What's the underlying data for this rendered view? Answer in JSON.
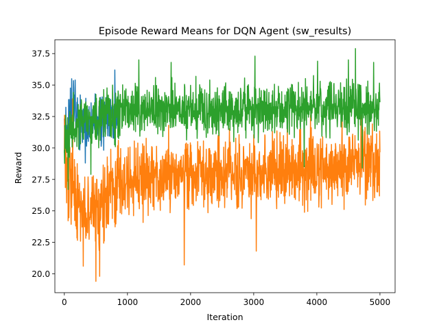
{
  "chart_data": {
    "type": "line",
    "title": "Episode Reward Means for DQN Agent (sw_results)",
    "xlabel": "Iteration",
    "ylabel": "Reward",
    "xlim": [
      -150,
      5240
    ],
    "ylim": [
      18.5,
      38.6
    ],
    "xticks": [
      0,
      1000,
      2000,
      3000,
      4000,
      5000
    ],
    "xtick_labels": [
      "0",
      "1000",
      "2000",
      "3000",
      "4000",
      "5000"
    ],
    "yticks": [
      20.0,
      22.5,
      25.0,
      27.5,
      30.0,
      32.5,
      35.0,
      37.5
    ],
    "ytick_labels": [
      "20.0",
      "22.5",
      "25.0",
      "27.5",
      "30.0",
      "32.5",
      "35.0",
      "37.5"
    ],
    "grid": false,
    "legend": "none",
    "series": [
      {
        "color": "#1f77b4",
        "x": [
          0,
          50,
          100,
          150,
          200,
          250,
          300,
          350,
          400,
          450,
          500,
          550,
          600,
          650,
          700,
          750,
          800,
          850
        ],
        "mean": [
          30.8,
          31.8,
          32.6,
          33.0,
          32.9,
          32.3,
          31.6,
          31.3,
          31.6,
          32.0,
          32.1,
          32.3,
          32.4,
          32.5,
          32.6,
          32.6,
          32.7,
          32.7
        ],
        "spread": [
          1.5,
          1.6,
          1.8,
          1.8,
          1.8,
          1.7,
          1.6,
          1.6,
          1.6,
          1.6,
          1.6,
          1.6,
          1.6,
          1.6,
          1.6,
          1.6,
          1.6,
          1.6
        ],
        "peaks": [
          [
            115,
            35.5
          ],
          [
            170,
            35.4
          ],
          [
            800,
            36.2
          ],
          [
            850,
            36.1
          ],
          [
            330,
            28.8
          ]
        ]
      },
      {
        "color": "#ff7f0e",
        "x": [
          0,
          100,
          200,
          300,
          400,
          500,
          600,
          800,
          1000,
          1500,
          2000,
          2500,
          3000,
          3500,
          4000,
          4500,
          5000
        ],
        "mean": [
          28.5,
          27.0,
          25.5,
          24.5,
          24.8,
          25.2,
          26.0,
          27.0,
          27.5,
          27.8,
          27.9,
          28.0,
          28.1,
          28.2,
          28.4,
          28.6,
          29.0
        ],
        "spread": [
          2.4,
          2.5,
          2.6,
          2.6,
          2.6,
          2.6,
          2.5,
          2.4,
          2.3,
          2.2,
          2.2,
          2.2,
          2.2,
          2.2,
          2.2,
          2.2,
          2.3
        ],
        "peaks": [
          [
            300,
            20.6
          ],
          [
            500,
            19.4
          ],
          [
            560,
            19.8
          ],
          [
            1900,
            20.7
          ],
          [
            3040,
            21.8
          ],
          [
            1650,
            31.8
          ],
          [
            3900,
            32.6
          ],
          [
            4400,
            32.2
          ],
          [
            4700,
            32.6
          ],
          [
            4800,
            32.4
          ],
          [
            130,
            33.9
          ]
        ]
      },
      {
        "color": "#2ca02c",
        "x": [
          0,
          100,
          200,
          300,
          400,
          500,
          600,
          800,
          1000,
          1500,
          2000,
          2500,
          3000,
          3500,
          4000,
          4500,
          5000
        ],
        "mean": [
          30.0,
          31.5,
          32.0,
          32.3,
          32.5,
          32.6,
          32.7,
          32.8,
          32.9,
          33.0,
          33.0,
          33.0,
          33.1,
          33.1,
          33.2,
          33.3,
          33.4
        ],
        "spread": [
          1.6,
          1.6,
          1.6,
          1.6,
          1.6,
          1.6,
          1.6,
          1.6,
          1.6,
          1.6,
          1.6,
          1.6,
          1.6,
          1.6,
          1.6,
          1.6,
          1.6
        ],
        "peaks": [
          [
            1180,
            37.0
          ],
          [
            1690,
            36.8
          ],
          [
            3020,
            37.3
          ],
          [
            4010,
            36.9
          ],
          [
            4610,
            37.9
          ],
          [
            4500,
            37.0
          ],
          [
            4900,
            36.8
          ],
          [
            60,
            26.7
          ],
          [
            420,
            27.9
          ],
          [
            3800,
            28.5
          ],
          [
            4720,
            28.4
          ]
        ]
      }
    ]
  }
}
